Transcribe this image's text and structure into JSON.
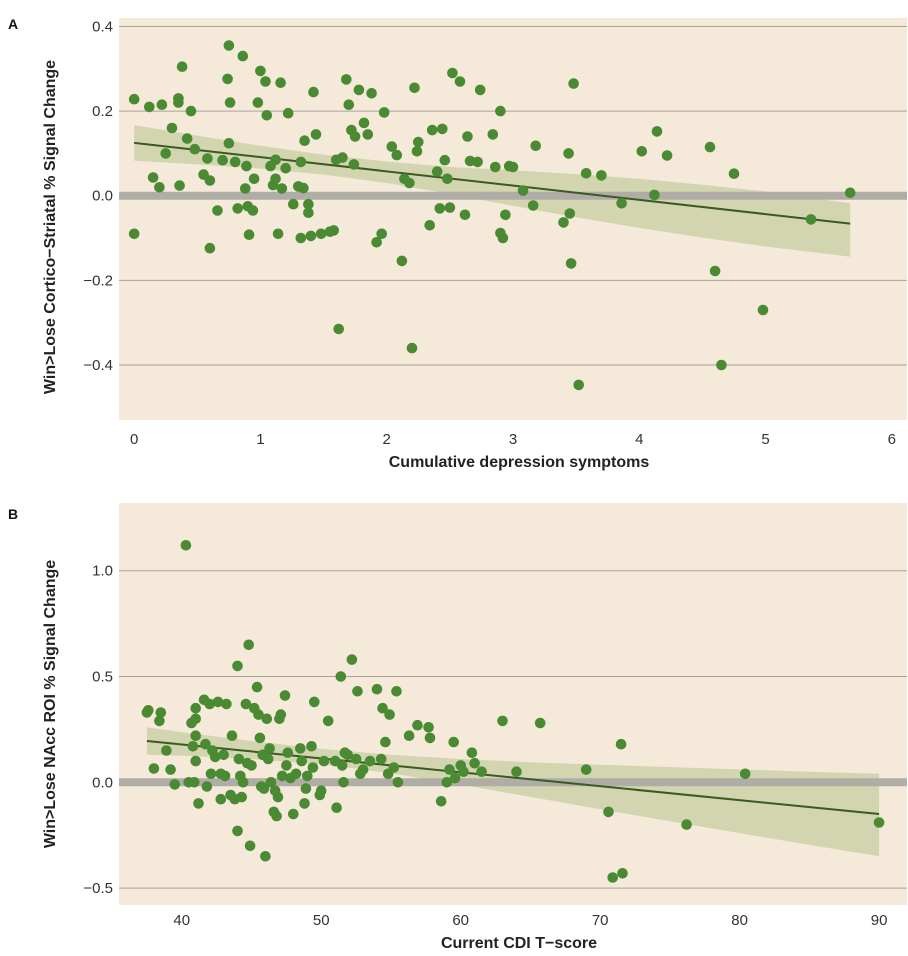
{
  "colors": {
    "panel_bg": "#f5e9da",
    "grid": "#a9a39b",
    "zero_line": "#b0aca6",
    "point": "#4a8a32",
    "fit_line": "#3b5a22",
    "band": "#c7cea3"
  },
  "chart_data": [
    {
      "type": "scatter",
      "panel_label": "A",
      "xlabel": "Cumulative depression symptoms",
      "ylabel": "Win>Lose Cortico−Striatal  % Signal Change",
      "xlim": [
        -0.12,
        6.12
      ],
      "ylim": [
        -0.53,
        0.42
      ],
      "xticks": [
        0,
        1,
        2,
        3,
        4,
        5,
        6
      ],
      "xtick_labels": [
        "0",
        "1",
        "2",
        "3",
        "4",
        "5",
        "6"
      ],
      "yticks": [
        -0.4,
        -0.2,
        0.0,
        0.2,
        0.4
      ],
      "ytick_labels": [
        "−0.4",
        "−0.2",
        "0.0",
        "0.2",
        "0.4"
      ],
      "grid": "horizontal",
      "fit": {
        "x0": 0.0,
        "y0": 0.125,
        "x1": 5.67,
        "y1": -0.066
      },
      "band": {
        "x": [
          0,
          0.5,
          1,
          1.5,
          2,
          2.5,
          3,
          3.5,
          4,
          4.5,
          5,
          5.67
        ],
        "upper": [
          0.167,
          0.142,
          0.118,
          0.097,
          0.081,
          0.068,
          0.06,
          0.051,
          0.04,
          0.026,
          0.01,
          -0.018
        ],
        "lower": [
          0.083,
          0.074,
          0.064,
          0.05,
          0.03,
          0.004,
          -0.024,
          -0.051,
          -0.076,
          -0.099,
          -0.12,
          -0.144
        ]
      },
      "points": [
        [
          0,
          0.228
        ],
        [
          0,
          -0.09
        ],
        [
          0.12,
          0.21
        ],
        [
          0.15,
          0.043
        ],
        [
          0.2,
          0.02
        ],
        [
          0.22,
          0.215
        ],
        [
          0.25,
          0.1
        ],
        [
          0.3,
          0.16
        ],
        [
          0.35,
          0.23
        ],
        [
          0.35,
          0.22
        ],
        [
          0.36,
          0.024
        ],
        [
          0.38,
          0.305
        ],
        [
          0.42,
          0.135
        ],
        [
          0.45,
          0.2
        ],
        [
          0.48,
          0.11
        ],
        [
          0.55,
          0.05
        ],
        [
          0.58,
          0.088
        ],
        [
          0.6,
          -0.124
        ],
        [
          0.6,
          0.036
        ],
        [
          0.66,
          -0.035
        ],
        [
          0.7,
          0.084
        ],
        [
          0.74,
          0.276
        ],
        [
          0.75,
          0.355
        ],
        [
          0.75,
          0.124
        ],
        [
          0.76,
          0.22
        ],
        [
          0.8,
          0.08
        ],
        [
          0.82,
          -0.03
        ],
        [
          0.86,
          0.33
        ],
        [
          0.88,
          0.017
        ],
        [
          0.89,
          0.07
        ],
        [
          0.9,
          -0.025
        ],
        [
          0.91,
          -0.092
        ],
        [
          0.94,
          -0.035
        ],
        [
          0.95,
          0.04
        ],
        [
          0.98,
          0.22
        ],
        [
          1.0,
          0.295
        ],
        [
          1.04,
          0.27
        ],
        [
          1.05,
          0.19
        ],
        [
          1.08,
          0.07
        ],
        [
          1.1,
          0.025
        ],
        [
          1.12,
          0.04
        ],
        [
          1.12,
          0.085
        ],
        [
          1.14,
          -0.09
        ],
        [
          1.16,
          0.267
        ],
        [
          1.17,
          0.017
        ],
        [
          1.2,
          0.065
        ],
        [
          1.22,
          0.195
        ],
        [
          1.26,
          -0.02
        ],
        [
          1.3,
          0.022
        ],
        [
          1.32,
          -0.1
        ],
        [
          1.32,
          0.08
        ],
        [
          1.34,
          0.018
        ],
        [
          1.35,
          0.13
        ],
        [
          1.38,
          -0.02
        ],
        [
          1.38,
          -0.04
        ],
        [
          1.4,
          -0.095
        ],
        [
          1.42,
          0.245
        ],
        [
          1.44,
          0.145
        ],
        [
          1.48,
          -0.09
        ],
        [
          1.55,
          -0.085
        ],
        [
          1.58,
          -0.082
        ],
        [
          1.6,
          0.085
        ],
        [
          1.62,
          -0.315
        ],
        [
          1.65,
          0.09
        ],
        [
          1.68,
          0.275
        ],
        [
          1.7,
          0.215
        ],
        [
          1.72,
          0.155
        ],
        [
          1.74,
          0.074
        ],
        [
          1.75,
          0.14
        ],
        [
          1.78,
          0.25
        ],
        [
          1.82,
          0.172
        ],
        [
          1.85,
          0.145
        ],
        [
          1.88,
          0.242
        ],
        [
          1.92,
          -0.11
        ],
        [
          1.96,
          -0.09
        ],
        [
          1.98,
          0.197
        ],
        [
          2.04,
          0.116
        ],
        [
          2.08,
          0.096
        ],
        [
          2.12,
          -0.154
        ],
        [
          2.14,
          0.04
        ],
        [
          2.18,
          0.03
        ],
        [
          2.2,
          -0.36
        ],
        [
          2.22,
          0.255
        ],
        [
          2.24,
          0.105
        ],
        [
          2.25,
          0.127
        ],
        [
          2.34,
          -0.07
        ],
        [
          2.36,
          0.155
        ],
        [
          2.4,
          0.057
        ],
        [
          2.42,
          -0.03
        ],
        [
          2.44,
          0.158
        ],
        [
          2.46,
          0.084
        ],
        [
          2.48,
          0.04
        ],
        [
          2.5,
          -0.028
        ],
        [
          2.52,
          0.29
        ],
        [
          2.58,
          0.27
        ],
        [
          2.62,
          -0.045
        ],
        [
          2.64,
          0.14
        ],
        [
          2.66,
          0.082
        ],
        [
          2.72,
          0.08
        ],
        [
          2.74,
          0.25
        ],
        [
          2.84,
          0.145
        ],
        [
          2.86,
          0.068
        ],
        [
          2.9,
          0.2
        ],
        [
          2.9,
          -0.088
        ],
        [
          2.92,
          -0.1
        ],
        [
          2.94,
          -0.045
        ],
        [
          2.97,
          0.07
        ],
        [
          3.0,
          0.068
        ],
        [
          3.08,
          0.012
        ],
        [
          3.16,
          -0.023
        ],
        [
          3.18,
          0.118
        ],
        [
          3.4,
          -0.063
        ],
        [
          3.44,
          0.1
        ],
        [
          3.45,
          -0.042
        ],
        [
          3.46,
          -0.16
        ],
        [
          3.48,
          0.265
        ],
        [
          3.52,
          -0.447
        ],
        [
          3.58,
          0.053
        ],
        [
          3.7,
          0.048
        ],
        [
          3.86,
          -0.018
        ],
        [
          4.02,
          0.105
        ],
        [
          4.12,
          0.002
        ],
        [
          4.14,
          0.152
        ],
        [
          4.22,
          0.095
        ],
        [
          4.56,
          0.115
        ],
        [
          4.6,
          -0.178
        ],
        [
          4.65,
          -0.4
        ],
        [
          4.75,
          0.052
        ],
        [
          4.98,
          -0.27
        ],
        [
          5.36,
          -0.056
        ],
        [
          5.67,
          0.007
        ]
      ]
    },
    {
      "type": "scatter",
      "panel_label": "B",
      "xlabel": "Current CDI T−score",
      "ylabel": "Win>Lose NAcc ROI  % Signal Change",
      "xlim": [
        35.5,
        92.0
      ],
      "ylim": [
        -0.58,
        1.32
      ],
      "xticks": [
        40,
        50,
        60,
        70,
        80,
        90
      ],
      "xtick_labels": [
        "40",
        "50",
        "60",
        "70",
        "80",
        "90"
      ],
      "yticks": [
        -0.5,
        0.0,
        0.5,
        1.0
      ],
      "ytick_labels": [
        "−0.5",
        "0.0",
        "0.5",
        "1.0"
      ],
      "grid": "horizontal",
      "fit": {
        "x0": 37.5,
        "y0": 0.195,
        "x1": 90.0,
        "y1": -0.15
      },
      "band": {
        "x": [
          37.5,
          40,
          45,
          50,
          55,
          60,
          65,
          70,
          75,
          80,
          85,
          90
        ],
        "upper": [
          0.26,
          0.237,
          0.195,
          0.158,
          0.13,
          0.11,
          0.095,
          0.083,
          0.072,
          0.061,
          0.05,
          0.04
        ],
        "lower": [
          0.13,
          0.125,
          0.11,
          0.085,
          0.043,
          -0.012,
          -0.069,
          -0.127,
          -0.184,
          -0.24,
          -0.296,
          -0.35
        ]
      },
      "points": [
        [
          37.5,
          0.33
        ],
        [
          37.6,
          0.34
        ],
        [
          38.0,
          0.065
        ],
        [
          38.4,
          0.29
        ],
        [
          38.5,
          0.33
        ],
        [
          38.9,
          0.15
        ],
        [
          39.2,
          0.06
        ],
        [
          39.5,
          -0.01
        ],
        [
          40.3,
          1.12
        ],
        [
          40.5,
          0.0
        ],
        [
          40.7,
          0.28
        ],
        [
          40.8,
          0.17
        ],
        [
          40.9,
          0.0
        ],
        [
          41.0,
          0.3
        ],
        [
          41.0,
          0.35
        ],
        [
          41.0,
          0.1
        ],
        [
          41.0,
          0.22
        ],
        [
          41.2,
          -0.1
        ],
        [
          41.6,
          0.39
        ],
        [
          41.7,
          0.18
        ],
        [
          41.8,
          -0.02
        ],
        [
          42.0,
          0.37
        ],
        [
          42.1,
          0.04
        ],
        [
          42.2,
          0.15
        ],
        [
          42.4,
          0.12
        ],
        [
          42.6,
          0.38
        ],
        [
          42.8,
          -0.08
        ],
        [
          42.8,
          0.04
        ],
        [
          43.0,
          0.13
        ],
        [
          43.1,
          0.03
        ],
        [
          43.2,
          0.37
        ],
        [
          43.5,
          -0.06
        ],
        [
          43.6,
          0.22
        ],
        [
          43.8,
          -0.08
        ],
        [
          44.0,
          0.55
        ],
        [
          44.0,
          -0.23
        ],
        [
          44.1,
          0.11
        ],
        [
          44.2,
          0.03
        ],
        [
          44.3,
          -0.07
        ],
        [
          44.4,
          0.0
        ],
        [
          44.6,
          0.37
        ],
        [
          44.7,
          0.09
        ],
        [
          44.8,
          0.65
        ],
        [
          44.9,
          -0.3
        ],
        [
          45.0,
          0.08
        ],
        [
          45.2,
          0.35
        ],
        [
          45.4,
          0.45
        ],
        [
          45.5,
          0.32
        ],
        [
          45.6,
          0.21
        ],
        [
          45.7,
          -0.02
        ],
        [
          45.8,
          0.13
        ],
        [
          45.9,
          -0.03
        ],
        [
          46.0,
          -0.35
        ],
        [
          46.1,
          0.3
        ],
        [
          46.2,
          0.11
        ],
        [
          46.3,
          0.16
        ],
        [
          46.4,
          0.0
        ],
        [
          46.6,
          -0.14
        ],
        [
          46.7,
          -0.04
        ],
        [
          46.8,
          -0.16
        ],
        [
          46.9,
          -0.07
        ],
        [
          47.0,
          0.3
        ],
        [
          47.1,
          0.32
        ],
        [
          47.2,
          0.03
        ],
        [
          47.4,
          0.41
        ],
        [
          47.5,
          0.08
        ],
        [
          47.6,
          0.14
        ],
        [
          47.8,
          0.02
        ],
        [
          48.0,
          -0.15
        ],
        [
          48.2,
          0.04
        ],
        [
          48.5,
          0.16
        ],
        [
          48.6,
          0.1
        ],
        [
          48.8,
          -0.1
        ],
        [
          48.9,
          -0.03
        ],
        [
          49.0,
          0.03
        ],
        [
          49.3,
          0.17
        ],
        [
          49.4,
          0.07
        ],
        [
          49.5,
          0.38
        ],
        [
          49.9,
          -0.06
        ],
        [
          50.0,
          -0.04
        ],
        [
          50.2,
          0.1
        ],
        [
          50.5,
          0.29
        ],
        [
          51.0,
          0.1
        ],
        [
          51.1,
          -0.12
        ],
        [
          51.4,
          0.5
        ],
        [
          51.5,
          0.08
        ],
        [
          51.6,
          0.0
        ],
        [
          51.7,
          0.14
        ],
        [
          51.9,
          0.13
        ],
        [
          52.2,
          0.58
        ],
        [
          52.5,
          0.11
        ],
        [
          52.6,
          0.43
        ],
        [
          52.8,
          0.04
        ],
        [
          53.0,
          0.06
        ],
        [
          53.5,
          0.1
        ],
        [
          54.0,
          0.44
        ],
        [
          54.3,
          0.11
        ],
        [
          54.4,
          0.35
        ],
        [
          54.6,
          0.19
        ],
        [
          54.8,
          0.04
        ],
        [
          54.9,
          0.32
        ],
        [
          55.2,
          0.07
        ],
        [
          55.4,
          0.43
        ],
        [
          55.5,
          0.0
        ],
        [
          56.3,
          0.22
        ],
        [
          56.9,
          0.27
        ],
        [
          57.7,
          0.26
        ],
        [
          57.8,
          0.21
        ],
        [
          58.6,
          -0.09
        ],
        [
          59.0,
          0.0
        ],
        [
          59.2,
          0.06
        ],
        [
          59.5,
          0.19
        ],
        [
          59.6,
          0.02
        ],
        [
          60.0,
          0.08
        ],
        [
          60.2,
          0.05
        ],
        [
          60.8,
          0.14
        ],
        [
          61.0,
          0.09
        ],
        [
          61.5,
          0.05
        ],
        [
          63.0,
          0.29
        ],
        [
          64.0,
          0.05
        ],
        [
          65.7,
          0.28
        ],
        [
          69.0,
          0.06
        ],
        [
          70.6,
          -0.14
        ],
        [
          70.9,
          -0.45
        ],
        [
          71.5,
          0.18
        ],
        [
          71.6,
          -0.43
        ],
        [
          76.2,
          -0.2
        ],
        [
          80.4,
          0.04
        ],
        [
          90.0,
          -0.19
        ]
      ]
    }
  ]
}
